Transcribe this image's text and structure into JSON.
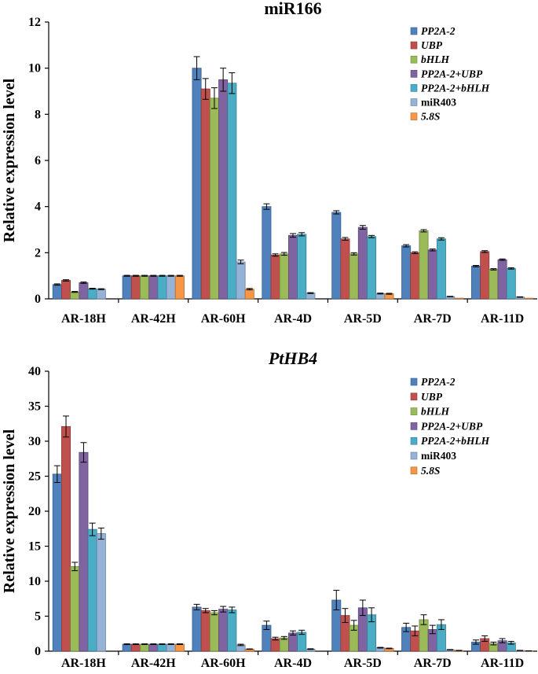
{
  "chart_data": [
    {
      "type": "bar",
      "title": "miR166",
      "title_italic": false,
      "xlabel": "",
      "ylabel": "Relative expression level",
      "ylim": [
        0,
        12
      ],
      "yticks": [
        0,
        2,
        4,
        6,
        8,
        10,
        12
      ],
      "categories": [
        "AR-18H",
        "AR-42H",
        "AR-60H",
        "AR-4D",
        "AR-5D",
        "AR-7D",
        "AR-11D"
      ],
      "legend_position": "top-right",
      "series": [
        {
          "name": "PP2A-2",
          "italic": true,
          "color": "#4f81bd",
          "values": [
            0.62,
            1.0,
            10.0,
            4.0,
            3.75,
            2.3,
            1.42
          ],
          "errors": [
            0.03,
            0.02,
            0.5,
            0.12,
            0.07,
            0.05,
            0.03
          ]
        },
        {
          "name": "UBP",
          "italic": true,
          "color": "#c0504d",
          "values": [
            0.8,
            1.0,
            9.1,
            1.9,
            2.6,
            2.0,
            2.05
          ],
          "errors": [
            0.03,
            0.02,
            0.45,
            0.05,
            0.06,
            0.04,
            0.04
          ]
        },
        {
          "name": "bHLH",
          "italic": true,
          "color": "#9bbb59",
          "values": [
            0.3,
            1.0,
            8.7,
            1.95,
            1.95,
            2.95,
            1.28
          ],
          "errors": [
            0.02,
            0.02,
            0.45,
            0.06,
            0.05,
            0.05,
            0.03
          ]
        },
        {
          "name": "PP2A-2+UBP",
          "italic": true,
          "color": "#8064a2",
          "values": [
            0.7,
            1.0,
            9.5,
            2.75,
            3.1,
            2.12,
            1.7
          ],
          "errors": [
            0.03,
            0.02,
            0.5,
            0.08,
            0.08,
            0.04,
            0.03
          ]
        },
        {
          "name": "PP2A-2+bHLH",
          "italic": true,
          "color": "#4bacc6",
          "values": [
            0.44,
            1.0,
            9.35,
            2.8,
            2.7,
            2.6,
            1.32
          ],
          "errors": [
            0.02,
            0.02,
            0.45,
            0.07,
            0.05,
            0.05,
            0.03
          ]
        },
        {
          "name": "miR403",
          "italic": false,
          "color": "#95b3d7",
          "values": [
            0.42,
            1.0,
            1.6,
            0.25,
            0.23,
            0.1,
            0.08
          ],
          "errors": [
            0.02,
            0.02,
            0.08,
            0.02,
            0.02,
            0.01,
            0.01
          ]
        },
        {
          "name": "5.8S",
          "italic": true,
          "color": "#f79646",
          "values": [
            0.0,
            1.0,
            0.42,
            0.0,
            0.22,
            0.03,
            0.03
          ],
          "errors": [
            0.0,
            0.02,
            0.03,
            0.0,
            0.02,
            0.0,
            0.0
          ]
        }
      ]
    },
    {
      "type": "bar",
      "title": "PtHB4",
      "title_italic": true,
      "xlabel": "",
      "ylabel": "Relative expression level",
      "ylim": [
        0,
        40
      ],
      "yticks": [
        0,
        5,
        10,
        15,
        20,
        25,
        30,
        35,
        40
      ],
      "categories": [
        "AR-18H",
        "AR-42H",
        "AR-60H",
        "AR-4D",
        "AR-5D",
        "AR-7D",
        "AR-11D"
      ],
      "legend_position": "top-right",
      "series": [
        {
          "name": "PP2A-2",
          "italic": true,
          "color": "#4f81bd",
          "values": [
            25.3,
            1.0,
            6.3,
            3.7,
            7.3,
            3.4,
            1.3
          ],
          "errors": [
            1.2,
            0.05,
            0.4,
            0.6,
            1.4,
            0.6,
            0.3
          ]
        },
        {
          "name": "UBP",
          "italic": true,
          "color": "#c0504d",
          "values": [
            32.1,
            1.0,
            5.8,
            1.8,
            5.1,
            2.9,
            1.8
          ],
          "errors": [
            1.5,
            0.05,
            0.3,
            0.2,
            1.0,
            0.7,
            0.4
          ]
        },
        {
          "name": "bHLH",
          "italic": true,
          "color": "#9bbb59",
          "values": [
            12.1,
            1.0,
            5.5,
            1.9,
            3.7,
            4.5,
            1.1
          ],
          "errors": [
            0.6,
            0.05,
            0.3,
            0.2,
            0.7,
            0.7,
            0.2
          ]
        },
        {
          "name": "PP2A-2+UBP",
          "italic": true,
          "color": "#8064a2",
          "values": [
            28.4,
            1.0,
            6.0,
            2.6,
            6.2,
            3.1,
            1.5
          ],
          "errors": [
            1.4,
            0.05,
            0.4,
            0.3,
            1.1,
            0.6,
            0.3
          ]
        },
        {
          "name": "PP2A-2+bHLH",
          "italic": true,
          "color": "#4bacc6",
          "values": [
            17.4,
            1.0,
            5.9,
            2.7,
            5.2,
            3.8,
            1.2
          ],
          "errors": [
            0.9,
            0.05,
            0.4,
            0.3,
            1.0,
            0.7,
            0.2
          ]
        },
        {
          "name": "miR403",
          "italic": false,
          "color": "#95b3d7",
          "values": [
            16.8,
            1.0,
            0.9,
            0.3,
            0.5,
            0.2,
            0.1
          ],
          "errors": [
            0.8,
            0.05,
            0.1,
            0.05,
            0.05,
            0.03,
            0.02
          ]
        },
        {
          "name": "5.8S",
          "italic": true,
          "color": "#f79646",
          "values": [
            0.0,
            1.0,
            0.3,
            0.0,
            0.4,
            0.1,
            0.05
          ],
          "errors": [
            0.0,
            0.05,
            0.03,
            0.0,
            0.04,
            0.02,
            0.01
          ]
        }
      ]
    }
  ]
}
